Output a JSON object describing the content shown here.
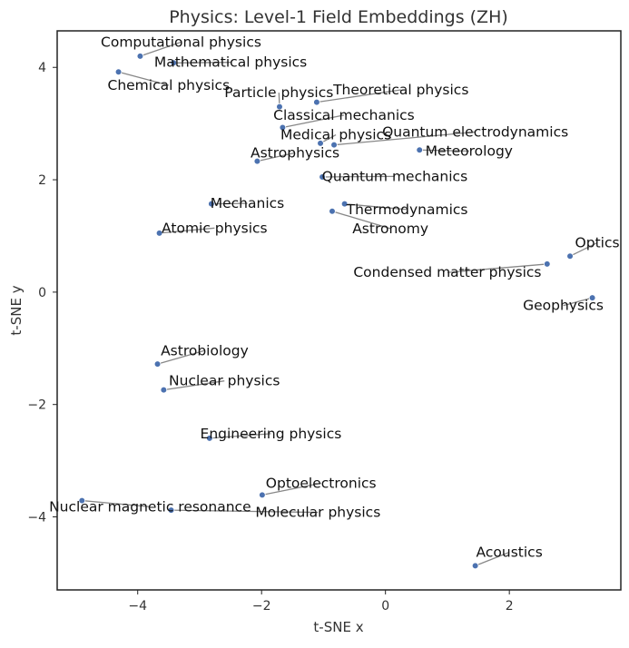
{
  "chart_data": {
    "type": "scatter",
    "title": "Physics: Level-1 Field Embeddings (ZH)",
    "xlabel": "t-SNE x",
    "ylabel": "t-SNE y",
    "xlim": [
      -5.3,
      3.8
    ],
    "ylim": [
      -5.3,
      4.65
    ],
    "xticks": [
      -4,
      -2,
      0,
      2
    ],
    "xtick_labels": [
      "−4",
      "−2",
      "0",
      "2"
    ],
    "yticks": [
      -4,
      -2,
      0,
      2,
      4
    ],
    "ytick_labels": [
      "−4",
      "−2",
      "0",
      "2",
      "4"
    ],
    "grid": false,
    "legend": "none",
    "point_color": "#4c72b0",
    "points": [
      {
        "label": "Computational physics",
        "x": -3.96,
        "y": 4.2,
        "lx": -3.3,
        "ly": 4.45
      },
      {
        "label": "Mathematical physics",
        "x": -3.42,
        "y": 4.08,
        "lx": -2.5,
        "ly": 4.09
      },
      {
        "label": "Chemical physics",
        "x": -4.31,
        "y": 3.92,
        "lx": -3.5,
        "ly": 3.68
      },
      {
        "label": "Particle physics",
        "x": -1.71,
        "y": 3.3,
        "lx": -1.72,
        "ly": 3.55
      },
      {
        "label": "Theoretical physics",
        "x": -1.11,
        "y": 3.38,
        "lx": 0.25,
        "ly": 3.6
      },
      {
        "label": "Classical mechanics",
        "x": -1.66,
        "y": 2.93,
        "lx": -0.67,
        "ly": 3.15
      },
      {
        "label": "Medical physics",
        "x": -1.05,
        "y": 2.65,
        "lx": -0.8,
        "ly": 2.8
      },
      {
        "label": "Quantum electrodynamics",
        "x": -0.83,
        "y": 2.62,
        "lx": 1.45,
        "ly": 2.85
      },
      {
        "label": "Meteorology",
        "x": 0.55,
        "y": 2.53,
        "lx": 1.35,
        "ly": 2.51
      },
      {
        "label": "Astrophysics",
        "x": -2.07,
        "y": 2.33,
        "lx": -1.46,
        "ly": 2.48
      },
      {
        "label": "Quantum mechanics",
        "x": -1.02,
        "y": 2.05,
        "lx": 0.15,
        "ly": 2.06
      },
      {
        "label": "Mechanics",
        "x": -2.81,
        "y": 1.57,
        "lx": -2.23,
        "ly": 1.58
      },
      {
        "label": "Thermodynamics",
        "x": -0.66,
        "y": 1.57,
        "lx": 0.35,
        "ly": 1.47
      },
      {
        "label": "Astronomy",
        "x": -0.86,
        "y": 1.44,
        "lx": 0.08,
        "ly": 1.13
      },
      {
        "label": "Atomic physics",
        "x": -3.65,
        "y": 1.05,
        "lx": -2.76,
        "ly": 1.14
      },
      {
        "label": "Optics",
        "x": 2.98,
        "y": 0.64,
        "lx": 3.42,
        "ly": 0.88
      },
      {
        "label": "Condensed matter physics",
        "x": 2.61,
        "y": 0.5,
        "lx": 1.0,
        "ly": 0.35
      },
      {
        "label": "Geophysics",
        "x": 3.34,
        "y": -0.1,
        "lx": 2.87,
        "ly": -0.24
      },
      {
        "label": "Astrobiology",
        "x": -3.68,
        "y": -1.28,
        "lx": -2.92,
        "ly": -1.04
      },
      {
        "label": "Nuclear physics",
        "x": -3.58,
        "y": -1.74,
        "lx": -2.6,
        "ly": -1.58
      },
      {
        "label": "Engineering physics",
        "x": -2.84,
        "y": -2.6,
        "lx": -1.85,
        "ly": -2.52
      },
      {
        "label": "Optoelectronics",
        "x": -1.99,
        "y": -3.61,
        "lx": -1.04,
        "ly": -3.4
      },
      {
        "label": "Nuclear magnetic resonance",
        "x": -4.9,
        "y": -3.71,
        "lx": -3.8,
        "ly": -3.82
      },
      {
        "label": "Molecular physics",
        "x": -3.46,
        "y": -3.88,
        "lx": -1.09,
        "ly": -3.92
      },
      {
        "label": "Acoustics",
        "x": 1.45,
        "y": -4.87,
        "lx": 2.0,
        "ly": -4.63
      }
    ]
  }
}
